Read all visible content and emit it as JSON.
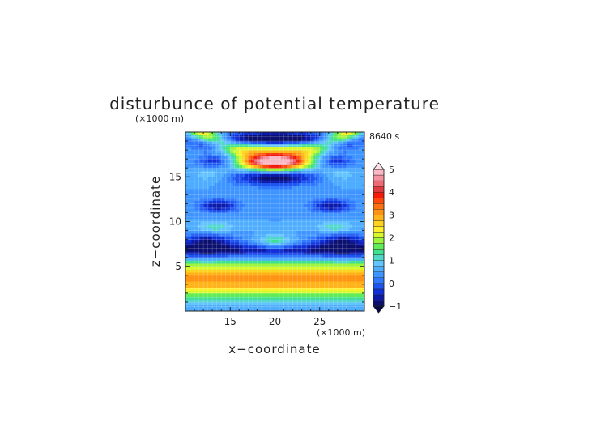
{
  "chart_data": {
    "type": "heatmap",
    "title": "disturbunce of potential temperature",
    "time_label": "8640 s",
    "xlabel": "x−coordinate",
    "ylabel": "z−coordinate",
    "x_unit": "(×1000 m)",
    "y_unit": "(×1000 m)",
    "xlim": [
      10,
      30
    ],
    "ylim": [
      0,
      20
    ],
    "x_ticks": [
      15,
      20,
      25
    ],
    "y_ticks": [
      5,
      10,
      15
    ],
    "colorbar": {
      "min": -1,
      "max": 5,
      "step": 0.25,
      "tick_values": [
        -1,
        0,
        1,
        2,
        3,
        4,
        5
      ],
      "tick_labels": [
        "−1",
        "0",
        "1",
        "2",
        "3",
        "4",
        "5"
      ],
      "colors": [
        "#0b0f6e",
        "#0d1aa8",
        "#1030d8",
        "#1e55f0",
        "#2f78ff",
        "#3f95ff",
        "#4fadff",
        "#63c4ff",
        "#4fd8c8",
        "#3fe08f",
        "#5fec57",
        "#9cf43d",
        "#d8f82e",
        "#ffef2a",
        "#ffd21f",
        "#ffb319",
        "#ff9414",
        "#ff7010",
        "#ff460c",
        "#f4190a",
        "#e0393f",
        "#ed6a72",
        "#f592a0",
        "#f8b8c4"
      ]
    },
    "grid": true
  }
}
